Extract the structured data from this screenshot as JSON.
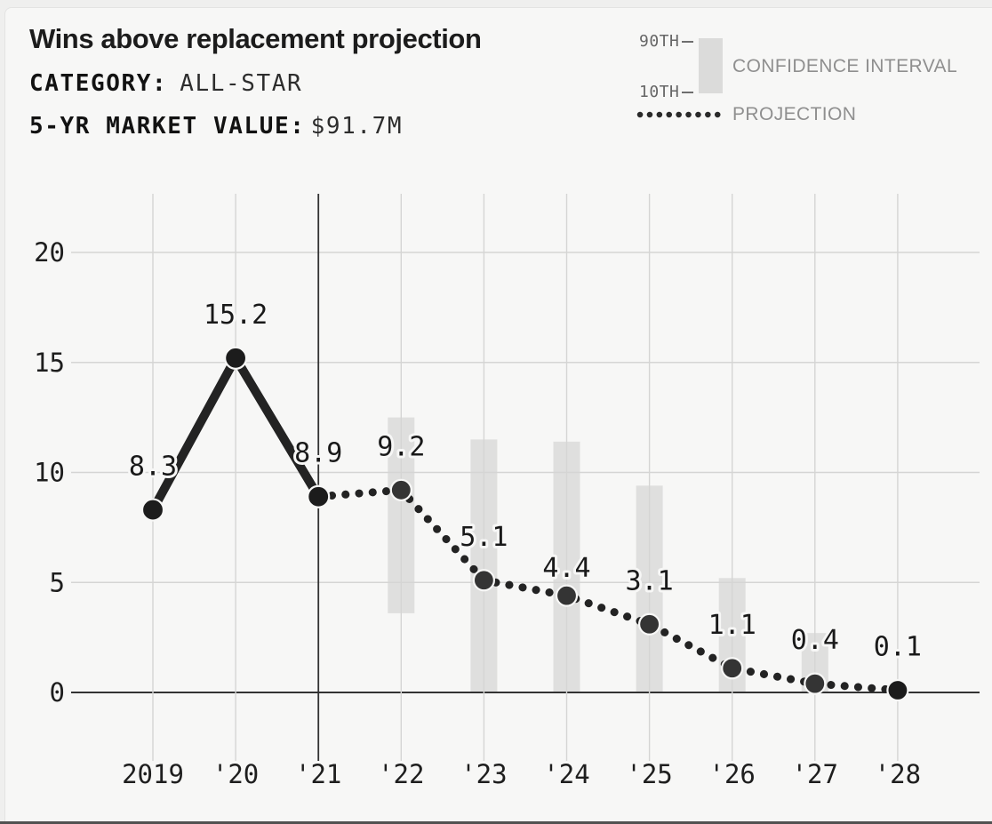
{
  "header": {
    "title": "Wins above replacement projection",
    "category_label": "CATEGORY:",
    "category_value": "ALL-STAR",
    "market_label": "5-YR MARKET VALUE:",
    "market_value": "$91.7M"
  },
  "legend": {
    "p90_label": "90TH",
    "p10_label": "10TH",
    "confidence_label": "CONFIDENCE INTERVAL",
    "projection_label": "PROJECTION"
  },
  "chart_data": {
    "type": "line",
    "title": "Wins above replacement projection",
    "x_labels": [
      "2019",
      "'20",
      "'21",
      "'22",
      "'23",
      "'24",
      "'25",
      "'26",
      "'27",
      "'28"
    ],
    "y_ticks": [
      0,
      5,
      10,
      15,
      20
    ],
    "ylim": [
      0,
      22.7
    ],
    "grid": true,
    "now_line_x": "'21",
    "actual": {
      "years": [
        "2019",
        "'20",
        "'21"
      ],
      "values": [
        8.3,
        15.2,
        8.9
      ]
    },
    "projection": {
      "years": [
        "'21",
        "'22",
        "'23",
        "'24",
        "'25",
        "'26",
        "'27",
        "'28"
      ],
      "values": [
        8.9,
        9.2,
        5.1,
        4.4,
        3.1,
        1.1,
        0.4,
        0.1
      ]
    },
    "point_labels": [
      "8.3",
      "15.2",
      "8.9",
      "9.2",
      "5.1",
      "4.4",
      "3.1",
      "1.1",
      "0.4",
      "0.1"
    ],
    "confidence_intervals": [
      {
        "year": "'22",
        "p10": 3.6,
        "p90": 12.5
      },
      {
        "year": "'23",
        "p10": 0,
        "p90": 11.5
      },
      {
        "year": "'24",
        "p10": 0,
        "p90": 11.4
      },
      {
        "year": "'25",
        "p10": 0,
        "p90": 9.4
      },
      {
        "year": "'26",
        "p10": 0,
        "p90": 5.2
      },
      {
        "year": "'27",
        "p10": 0,
        "p90": 2.7
      }
    ],
    "colors": {
      "line": "#232323",
      "marker_actual": "#1c1c1c",
      "marker_projection": "#343434",
      "marker_final": "#1b1b1b",
      "ci_bar": "#dfdfde",
      "grid": "#d5d5d4",
      "axis_dark": "#333333",
      "background": "#f7f7f6",
      "legend_text": "#8f8f8f"
    }
  }
}
